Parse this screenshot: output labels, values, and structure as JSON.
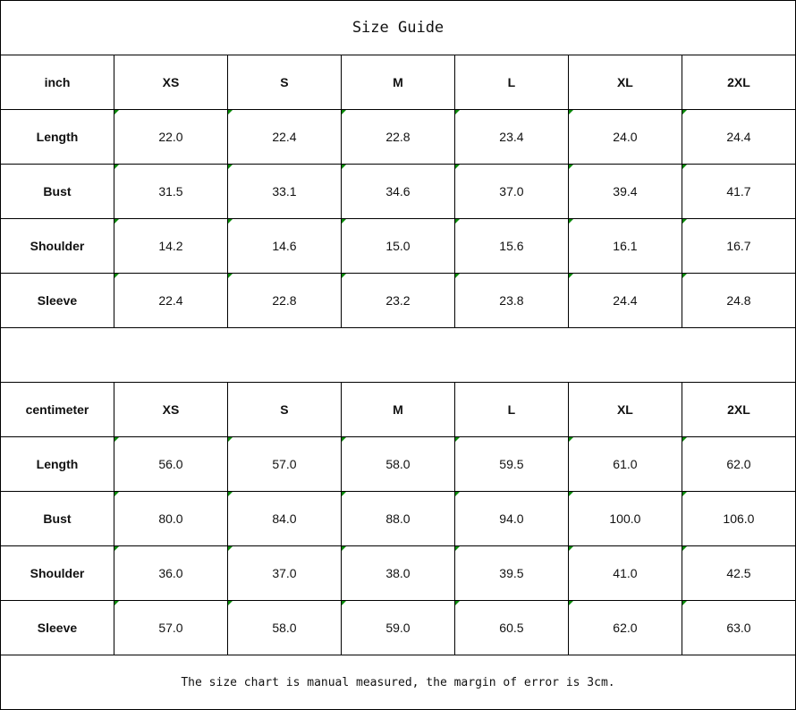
{
  "title": "Size Guide",
  "tables": [
    {
      "unit": "inch",
      "sizes": [
        "XS",
        "S",
        "M",
        "L",
        "XL",
        "2XL"
      ],
      "rows": [
        {
          "label": "Length",
          "values": [
            "22.0",
            "22.4",
            "22.8",
            "23.4",
            "24.0",
            "24.4"
          ]
        },
        {
          "label": "Bust",
          "values": [
            "31.5",
            "33.1",
            "34.6",
            "37.0",
            "39.4",
            "41.7"
          ]
        },
        {
          "label": "Shoulder",
          "values": [
            "14.2",
            "14.6",
            "15.0",
            "15.6",
            "16.1",
            "16.7"
          ]
        },
        {
          "label": "Sleeve",
          "values": [
            "22.4",
            "22.8",
            "23.2",
            "23.8",
            "24.4",
            "24.8"
          ]
        }
      ]
    },
    {
      "unit": "centimeter",
      "sizes": [
        "XS",
        "S",
        "M",
        "L",
        "XL",
        "2XL"
      ],
      "rows": [
        {
          "label": "Length",
          "values": [
            "56.0",
            "57.0",
            "58.0",
            "59.5",
            "61.0",
            "62.0"
          ]
        },
        {
          "label": "Bust",
          "values": [
            "80.0",
            "84.0",
            "88.0",
            "94.0",
            "100.0",
            "106.0"
          ]
        },
        {
          "label": "Shoulder",
          "values": [
            "36.0",
            "37.0",
            "38.0",
            "39.5",
            "41.0",
            "42.5"
          ]
        },
        {
          "label": "Sleeve",
          "values": [
            "57.0",
            "58.0",
            "59.0",
            "60.5",
            "62.0",
            "63.0"
          ]
        }
      ]
    }
  ],
  "note": "The size chart is manual measured, the margin of error is 3cm.",
  "colors": {
    "cell_marker": "#0a8a0a"
  }
}
